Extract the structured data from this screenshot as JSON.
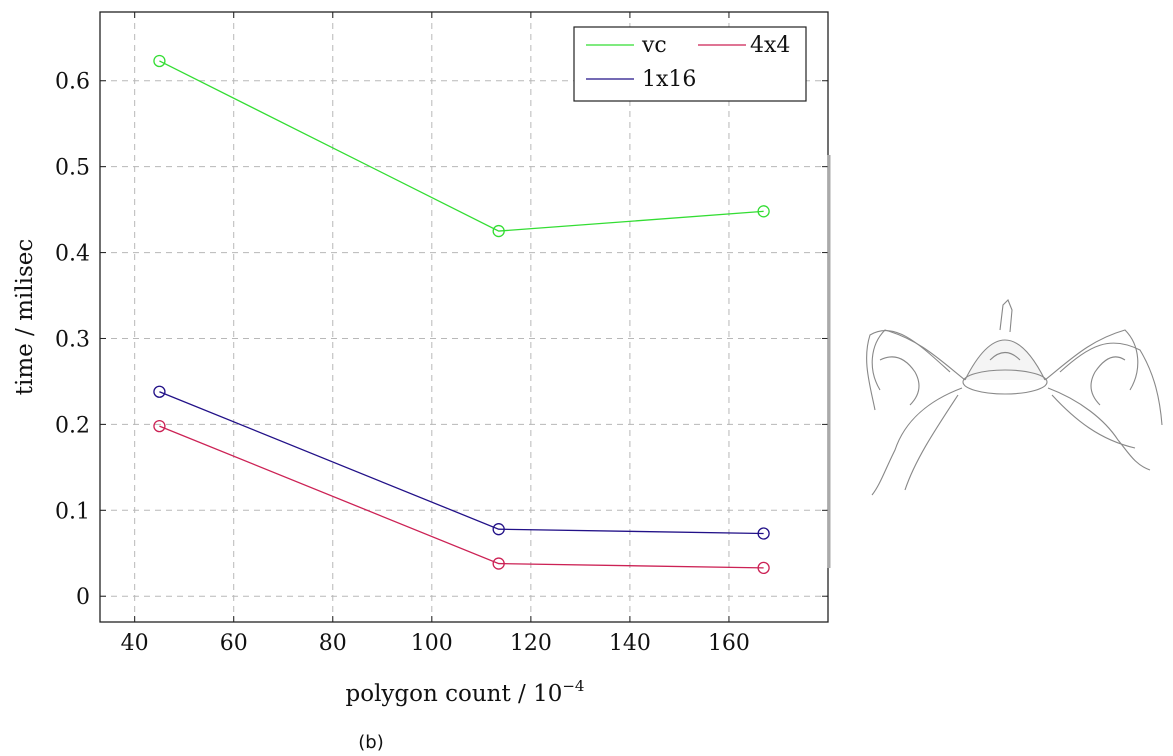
{
  "chart_data": {
    "type": "line",
    "xlabel": "polygon count / 10",
    "xlabel_exponent": "−4",
    "ylabel": "time / milisec",
    "xlim": [
      33,
      180
    ],
    "ylim": [
      -0.03,
      0.68
    ],
    "xticks": [
      40,
      60,
      80,
      100,
      120,
      140,
      160
    ],
    "yticks": [
      0,
      0.1,
      0.2,
      0.3,
      0.4,
      0.5,
      0.6
    ],
    "grid": true,
    "legend_position": "top-right",
    "caption": "(b)",
    "series": [
      {
        "name": "vc",
        "color": "#33dd33",
        "x": [
          45,
          113.5,
          167
        ],
        "y": [
          0.623,
          0.425,
          0.448
        ]
      },
      {
        "name": "4x4",
        "color": "#cc2255",
        "x": [
          45,
          113.5,
          167
        ],
        "y": [
          0.198,
          0.038,
          0.033
        ]
      },
      {
        "name": "1x16",
        "color": "#221188",
        "x": [
          45,
          113.5,
          167
        ],
        "y": [
          0.238,
          0.078,
          0.073
        ]
      }
    ],
    "inset_image": "spider-mesh-illustration"
  }
}
